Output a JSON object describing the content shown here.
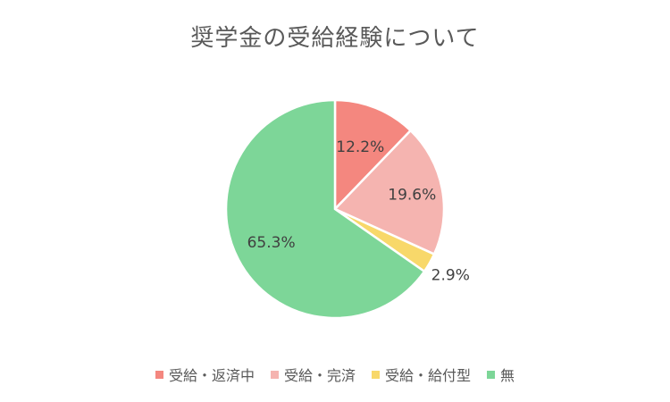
{
  "chart_data": {
    "type": "pie",
    "title": "奨学金の受給経験について",
    "series": [
      {
        "name": "",
        "categories": [
          "受給・返済中",
          "受給・完済",
          "受給・給付型",
          "無"
        ],
        "values": [
          12.2,
          19.6,
          2.9,
          65.3
        ],
        "labels": [
          "12.2%",
          "19.6%",
          "2.9%",
          "65.3%"
        ],
        "colors": [
          "#F4877F",
          "#F5B4B0",
          "#F8D86A",
          "#7DD698"
        ]
      }
    ],
    "start_angle_deg": 0,
    "direction": "clockwise",
    "legend_position": "bottom"
  }
}
